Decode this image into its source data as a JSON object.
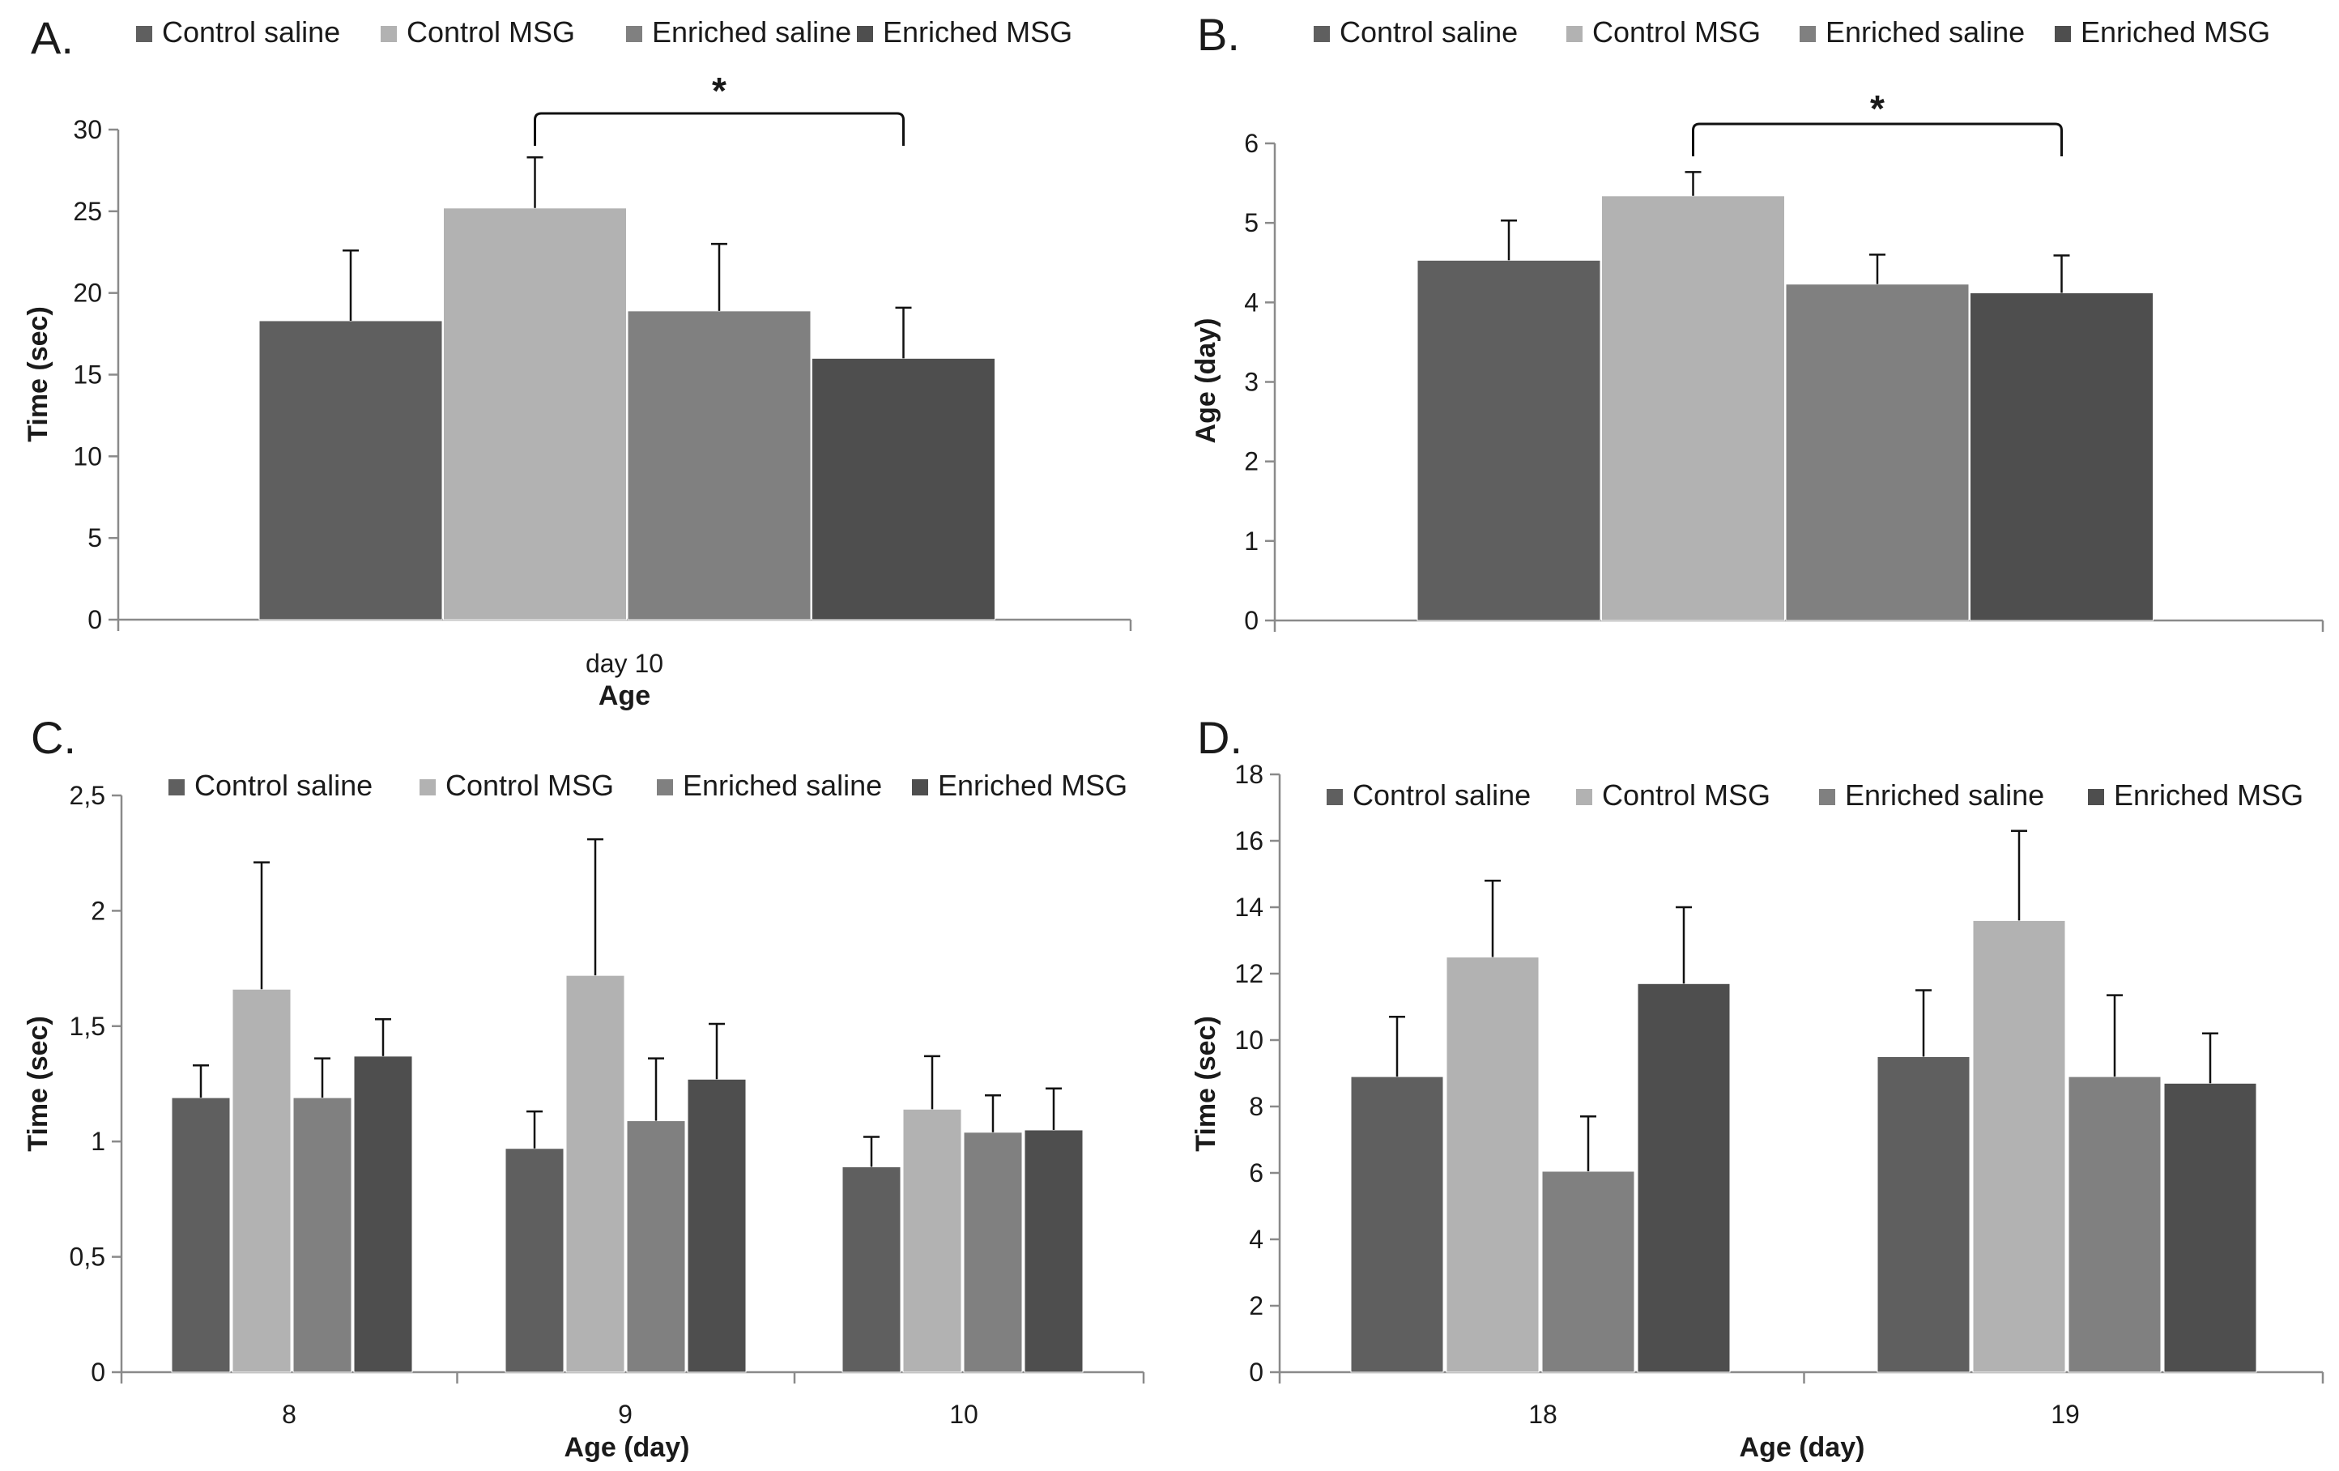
{
  "legend": {
    "series": [
      {
        "name": "Control saline",
        "color": "#5f5f5f"
      },
      {
        "name": "Control MSG",
        "color": "#b2b2b2"
      },
      {
        "name": "Enriched saline",
        "color": "#808080"
      },
      {
        "name": "Enriched MSG",
        "color": "#4e4e4e"
      }
    ]
  },
  "chart_data": [
    {
      "id": "A",
      "label": "A.",
      "type": "bar",
      "categories": [
        "day 10"
      ],
      "series": [
        {
          "name": "Control saline",
          "values": [
            18.3
          ],
          "errors": [
            4.3
          ]
        },
        {
          "name": "Control MSG",
          "values": [
            25.2
          ],
          "errors": [
            3.1
          ]
        },
        {
          "name": "Enriched saline",
          "values": [
            18.9
          ],
          "errors": [
            4.1
          ]
        },
        {
          "name": "Enriched MSG",
          "values": [
            16.0
          ],
          "errors": [
            3.1
          ]
        }
      ],
      "xlabel": "Age",
      "ylabel": "Time (sec)",
      "ylim": [
        0,
        30
      ],
      "yticks": [
        0,
        5,
        10,
        15,
        20,
        25,
        30
      ],
      "ytick_labels": [
        "0",
        "5",
        "10",
        "15",
        "20",
        "25",
        "30"
      ],
      "significance": {
        "from": "Control MSG",
        "to": "Enriched MSG",
        "label": "*"
      }
    },
    {
      "id": "B",
      "label": "B.",
      "type": "bar",
      "categories": [
        ""
      ],
      "series": [
        {
          "name": "Control saline",
          "values": [
            4.53
          ],
          "errors": [
            0.5
          ]
        },
        {
          "name": "Control MSG",
          "values": [
            5.34
          ],
          "errors": [
            0.3
          ]
        },
        {
          "name": "Enriched saline",
          "values": [
            4.23
          ],
          "errors": [
            0.37
          ]
        },
        {
          "name": "Enriched MSG",
          "values": [
            4.12
          ],
          "errors": [
            0.47
          ]
        }
      ],
      "xlabel": "",
      "ylabel": "Age (day)",
      "ylim": [
        0,
        6
      ],
      "yticks": [
        0,
        1,
        2,
        3,
        4,
        5,
        6
      ],
      "ytick_labels": [
        "0",
        "1",
        "2",
        "3",
        "4",
        "5",
        "6"
      ],
      "significance": {
        "from": "Control MSG",
        "to": "Enriched MSG",
        "label": "*"
      }
    },
    {
      "id": "C",
      "label": "C.",
      "type": "bar",
      "categories": [
        "8",
        "9",
        "10"
      ],
      "series": [
        {
          "name": "Control saline",
          "values": [
            1.19,
            0.97,
            0.89
          ],
          "errors": [
            0.14,
            0.16,
            0.13
          ]
        },
        {
          "name": "Control MSG",
          "values": [
            1.66,
            1.72,
            1.14
          ],
          "errors": [
            0.55,
            0.59,
            0.23
          ]
        },
        {
          "name": "Enriched saline",
          "values": [
            1.19,
            1.09,
            1.04
          ],
          "errors": [
            0.17,
            0.27,
            0.16
          ]
        },
        {
          "name": "Enriched MSG",
          "values": [
            1.37,
            1.27,
            1.05
          ],
          "errors": [
            0.16,
            0.24,
            0.18
          ]
        }
      ],
      "xlabel": "Age (day)",
      "ylabel": "Time (sec)",
      "ylim": [
        0,
        2.5
      ],
      "yticks": [
        0,
        0.5,
        1,
        1.5,
        2,
        2.5
      ],
      "ytick_labels": [
        "0",
        "0,5",
        "1",
        "1,5",
        "2",
        "2,5"
      ]
    },
    {
      "id": "D",
      "label": "D.",
      "type": "bar",
      "categories": [
        "18",
        "19"
      ],
      "series": [
        {
          "name": "Control saline",
          "values": [
            8.9,
            9.5
          ],
          "errors": [
            1.8,
            2.0
          ]
        },
        {
          "name": "Control MSG",
          "values": [
            12.5,
            13.6
          ],
          "errors": [
            2.3,
            2.7
          ]
        },
        {
          "name": "Enriched saline",
          "values": [
            6.05,
            8.9
          ],
          "errors": [
            1.65,
            2.45
          ]
        },
        {
          "name": "Enriched MSG",
          "values": [
            11.7,
            8.7
          ],
          "errors": [
            2.3,
            1.5
          ]
        }
      ],
      "xlabel": "Age (day)",
      "ylabel": "Time (sec)",
      "ylim": [
        0,
        18
      ],
      "yticks": [
        0,
        2,
        4,
        6,
        8,
        10,
        12,
        14,
        16,
        18
      ],
      "ytick_labels": [
        "0",
        "2",
        "4",
        "6",
        "8",
        "10",
        "12",
        "14",
        "16",
        "18"
      ]
    }
  ]
}
